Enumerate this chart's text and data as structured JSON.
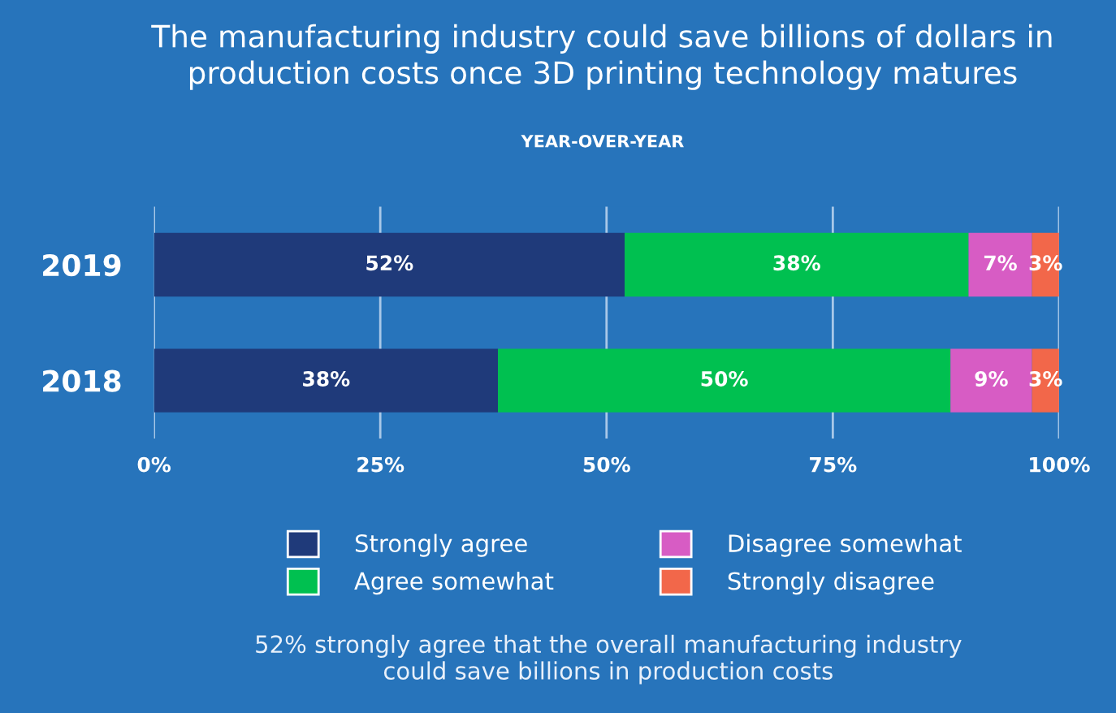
{
  "chart_data": {
    "type": "bar",
    "orientation": "horizontal",
    "stacked": true,
    "title": "The manufacturing industry could save billions of dollars in\nproduction costs once 3D printing technology matures",
    "subtitle": "YEAR-OVER-YEAR",
    "categories": [
      "2019",
      "2018"
    ],
    "series": [
      {
        "name": "Strongly agree",
        "color": "#1f3a7a",
        "values": [
          52,
          38
        ],
        "value_labels": [
          "52%",
          "38%"
        ]
      },
      {
        "name": "Agree somewhat",
        "color": "#00c050",
        "values": [
          38,
          50
        ],
        "value_labels": [
          "38%",
          "50%"
        ]
      },
      {
        "name": "Disagree somewhat",
        "color": "#d75cc4",
        "values": [
          7,
          9
        ],
        "value_labels": [
          "7%",
          "9%"
        ]
      },
      {
        "name": "Strongly disagree",
        "color": "#f2674a",
        "values": [
          3,
          3
        ],
        "value_labels": [
          "3%",
          "3%"
        ]
      }
    ],
    "xlim": [
      0,
      100
    ],
    "xticks": [
      {
        "value": 0,
        "label": "0%"
      },
      {
        "value": 25,
        "label": "25%"
      },
      {
        "value": 50,
        "label": "50%"
      },
      {
        "value": 75,
        "label": "75%"
      },
      {
        "value": 100,
        "label": "100%"
      }
    ],
    "grid": "x",
    "legend": "bottom",
    "annotations": [
      "52% strongly agree that the overall manufacturing industry\ncould save billions in production costs"
    ]
  }
}
